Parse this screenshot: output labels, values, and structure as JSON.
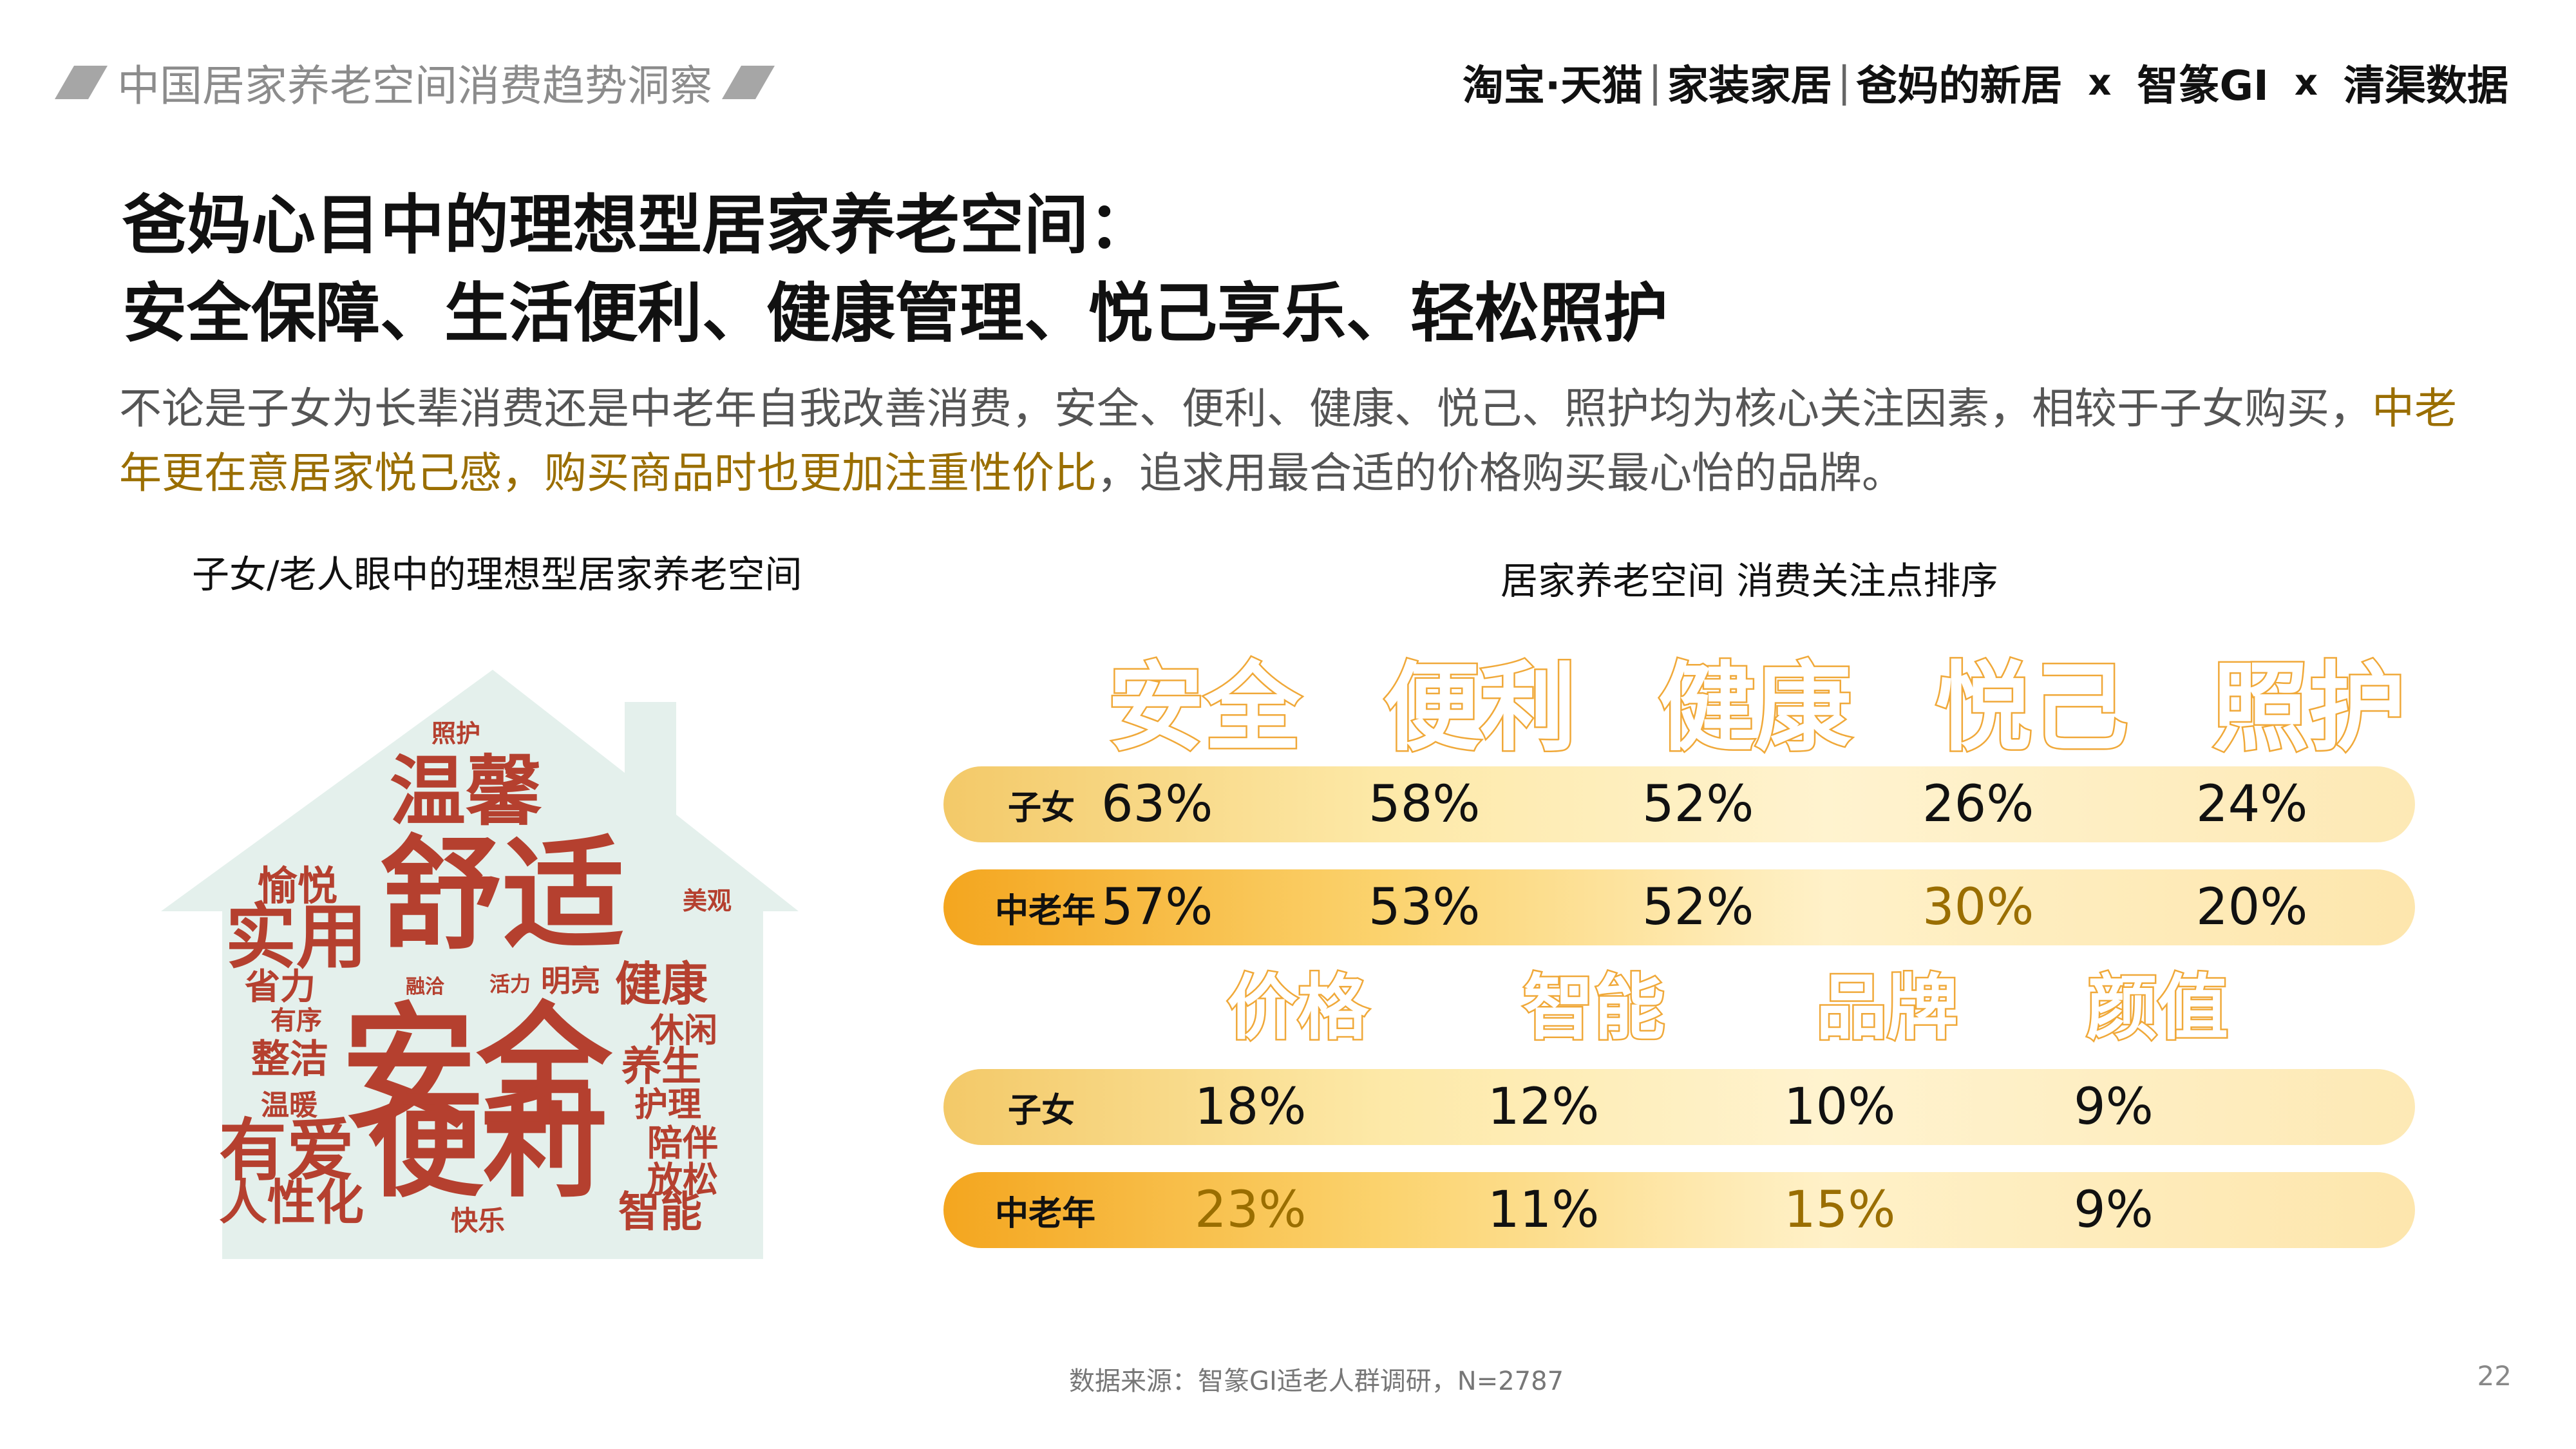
{
  "header": {
    "left_title": "中国居家养老空间消费趋势洞察",
    "brand_1": "淘宝·天猫",
    "brand_2": "家装家居",
    "brand_3": "爸妈的新居",
    "brand_4": "智篆GI",
    "brand_5": "清渠数据",
    "separator": "|",
    "times": "x"
  },
  "title": {
    "line1": "爸妈心目中的理想型居家养老空间：",
    "line2": "安全保障、生活便利、健康管理、悦己享乐、轻松照护"
  },
  "description": {
    "part1": "不论是子女为长辈消费还是中老年自我改善消费，安全、便利、健康、悦己、照护均为核心关注因素，相较于子女购买，",
    "highlight": "中老年更在意居家悦己感，购买商品时也更加注重性价比",
    "part2": "，追求用最合适的价格购买最心怡的品牌。"
  },
  "word_cloud": {
    "title": "子女/老人眼中的理想型居家养老空间",
    "words": [
      "照护",
      "温馨",
      "愉悦",
      "舒适",
      "美观",
      "实用",
      "省力",
      "融洽",
      "活力",
      "明亮",
      "健康",
      "有序",
      "休闲",
      "整洁",
      "安全",
      "养生",
      "护理",
      "温暖",
      "陪伴",
      "有爱",
      "便利",
      "放松",
      "人性化",
      "快乐",
      "智能"
    ]
  },
  "chart_data": {
    "type": "table",
    "title": "居家养老空间 消费关注点排序",
    "series_labels": [
      "子女",
      "中老年"
    ],
    "groups": [
      {
        "categories": [
          "安全",
          "便利",
          "健康",
          "悦己",
          "照护"
        ],
        "series": [
          {
            "name": "子女",
            "values": [
              "63%",
              "58%",
              "52%",
              "26%",
              "24%"
            ]
          },
          {
            "name": "中老年",
            "values": [
              "57%",
              "53%",
              "52%",
              "30%",
              "20%"
            ]
          }
        ],
        "highlighted": [
          {
            "series": "中老年",
            "category": "悦己"
          }
        ]
      },
      {
        "categories": [
          "价格",
          "智能",
          "品牌",
          "颜值"
        ],
        "series": [
          {
            "name": "子女",
            "values": [
              "18%",
              "12%",
              "10%",
              "9%"
            ]
          },
          {
            "name": "中老年",
            "values": [
              "23%",
              "11%",
              "15%",
              "9%"
            ]
          }
        ],
        "highlighted": [
          {
            "series": "中老年",
            "category": "价格"
          },
          {
            "series": "中老年",
            "category": "品牌"
          }
        ]
      }
    ]
  },
  "footer": {
    "source": "数据来源：智篆GI适老人群调研，N=2787",
    "page_number": "22"
  },
  "colors": {
    "accent": "#f0a93a",
    "highlight_text": "#9a6e00",
    "word_cloud": "#b5402f",
    "house_bg": "#e4f0ec"
  }
}
